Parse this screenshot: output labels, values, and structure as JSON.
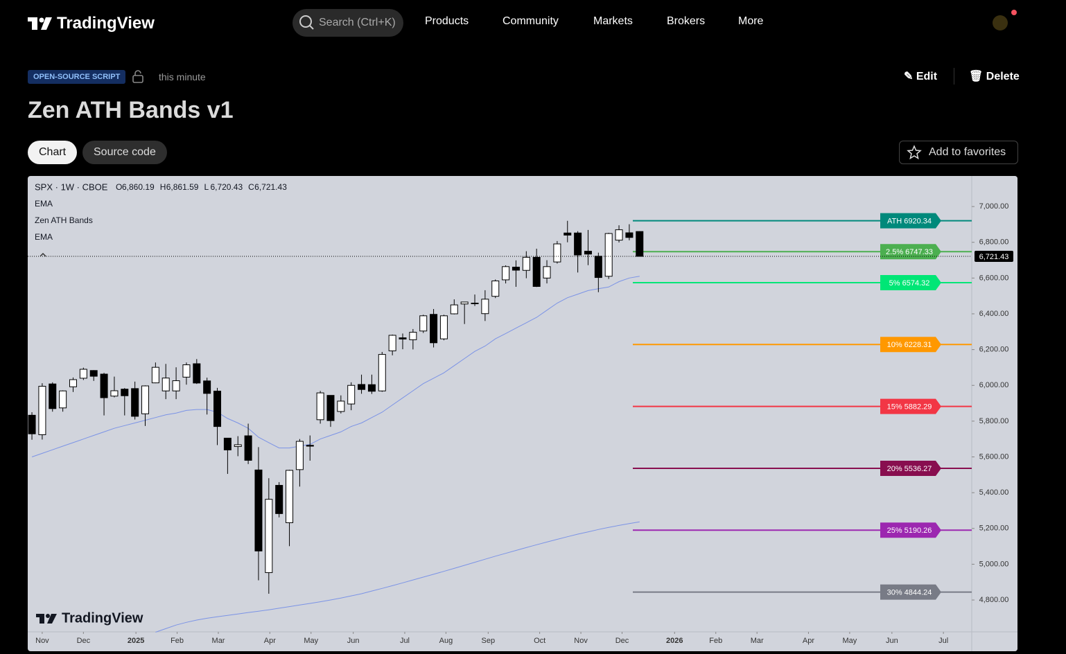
{
  "header": {
    "logo": "TradingView",
    "search": "Search (Ctrl+K)",
    "nav": [
      "Products",
      "Community",
      "Markets",
      "Brokers",
      "More"
    ]
  },
  "script": {
    "badge": "OPEN-SOURCE SCRIPT",
    "time": "this minute",
    "edit": "Edit",
    "delete": "Delete",
    "title": "Zen ATH Bands v1",
    "tabs": [
      "Chart",
      "Source code"
    ],
    "favorite": "Add to favorites"
  },
  "chart_data": {
    "type": "candlestick",
    "symbol": "SPX · 1W · CBOE",
    "ohlc_legend": [
      {
        "key": "O",
        "value": "6,860.19"
      },
      {
        "key": "H",
        "value": "6,861.59"
      },
      {
        "key": "L",
        "value": "6,720.43"
      },
      {
        "key": "C",
        "value": "6,721.43"
      }
    ],
    "watermark": "TradingView",
    "ylim": [
      4622,
      7163
    ],
    "yticks": [
      {
        "value": 4800,
        "label": "4,800.00"
      },
      {
        "value": 5000,
        "label": "5,000.00"
      },
      {
        "value": 5200,
        "label": "5,200.00"
      },
      {
        "value": 5400,
        "label": "5,400.00"
      },
      {
        "value": 5600,
        "label": "5,600.00"
      },
      {
        "value": 5800,
        "label": "5,800.00"
      },
      {
        "value": 6000,
        "label": "6,000.00"
      },
      {
        "value": 6200,
        "label": "6,200.00"
      },
      {
        "value": 6400,
        "label": "6,400.00"
      },
      {
        "value": 6600,
        "label": "6,600.00"
      },
      {
        "value": 6800,
        "label": "6,800.00"
      },
      {
        "value": 7000,
        "label": "7,000.00"
      }
    ],
    "xlim": [
      -0.34,
      91.25
    ],
    "xticks": [
      {
        "value": 1.0,
        "label": "Nov"
      },
      {
        "value": 5.0,
        "label": "Dec"
      },
      {
        "value": 10.1,
        "label": "2025"
      },
      {
        "value": 14.1,
        "label": "Feb"
      },
      {
        "value": 18.1,
        "label": "Mar"
      },
      {
        "value": 23.1,
        "label": "Apr"
      },
      {
        "value": 27.1,
        "label": "May"
      },
      {
        "value": 31.2,
        "label": "Jun"
      },
      {
        "value": 36.2,
        "label": "Jul"
      },
      {
        "value": 40.2,
        "label": "Aug"
      },
      {
        "value": 44.3,
        "label": "Sep"
      },
      {
        "value": 49.3,
        "label": "Oct"
      },
      {
        "value": 53.3,
        "label": "Nov"
      },
      {
        "value": 57.3,
        "label": "Dec"
      },
      {
        "value": 62.4,
        "label": "2026"
      },
      {
        "value": 66.4,
        "label": "Feb"
      },
      {
        "value": 70.4,
        "label": "Mar"
      },
      {
        "value": 75.4,
        "label": "Apr"
      },
      {
        "value": 79.4,
        "label": "May"
      },
      {
        "value": 83.5,
        "label": "Jun"
      },
      {
        "value": 88.5,
        "label": "Jul"
      }
    ],
    "ohlc": {
      "open": [
        5833,
        5724,
        6008,
        5874,
        5992,
        6040,
        6083,
        6063,
        5940,
        5979,
        5982,
        5841,
        6014,
        5969,
        5969,
        6046,
        6121,
        6025,
        5968,
        5705,
        5658,
        5718,
        5527,
        4953,
        5441,
        5232,
        5529,
        5665,
        5808,
        5944,
        5854,
        5896,
        6005,
        6004,
        5969,
        6193,
        6266,
        6255,
        6304,
        6397,
        6260,
        6400,
        6455,
        6457,
        6401,
        6498,
        6590,
        6661,
        6643,
        6716,
        6600,
        6690,
        6852,
        6852,
        6750,
        6722,
        6610,
        6812,
        6853,
        6860.19
      ],
      "high": [
        5850,
        6012,
        6017,
        5972,
        6044,
        6099,
        6085,
        6070,
        6049,
        5985,
        6021,
        6000,
        6128,
        6120,
        6101,
        6128,
        6147,
        6043,
        5986,
        5705,
        5716,
        5786,
        5655,
        5481,
        5459,
        5528,
        5700,
        5720,
        5969,
        5944,
        5944,
        6017,
        6060,
        6060,
        6187,
        6284,
        6290,
        6315,
        6395,
        6427,
        6395,
        6481,
        6467,
        6508,
        6532,
        6592,
        6671,
        6699,
        6750,
        6764,
        6700,
        6807,
        6920,
        6862,
        6869,
        6742,
        6853,
        6895,
        6901,
        6861.59
      ],
      "low": [
        5696,
        5697,
        5853,
        5853,
        5963,
        6030,
        6025,
        5832,
        5933,
        5832,
        5809,
        5773,
        6012,
        5923,
        5923,
        6004,
        6008,
        5837,
        5666,
        5505,
        5604,
        5560,
        4910,
        4835,
        5262,
        5101,
        5434,
        5579,
        5786,
        5768,
        5843,
        5861,
        5953,
        5952,
        5964,
        6168,
        6202,
        6201,
        6293,
        6212,
        6252,
        6397,
        6343,
        6444,
        6360,
        6488,
        6570,
        6551,
        6599,
        6550,
        6570,
        6681,
        6800,
        6631,
        6672,
        6521,
        6595,
        6799,
        6811,
        6720.43
      ],
      "close": [
        5729,
        5995,
        5870,
        5969,
        6032,
        6090,
        6051,
        5931,
        5970,
        5942,
        5827,
        5997,
        6101,
        6041,
        6026,
        6115,
        6013,
        5955,
        5770,
        5639,
        5668,
        5581,
        5074,
        5363,
        5283,
        5525,
        5687,
        5660,
        5958,
        5803,
        5912,
        6000,
        5977,
        5967,
        6173,
        6280,
        6259,
        6297,
        6389,
        6238,
        6389,
        6450,
        6466,
        6460,
        6482,
        6584,
        6664,
        6644,
        6716,
        6553,
        6664,
        6791,
        6840,
        6729,
        6734,
        6603,
        6849,
        6870,
        6827,
        6721.43
      ]
    },
    "lines": [
      {
        "name": "EMA",
        "color": "#7b93e6",
        "values": [
          5600,
          5620,
          5640,
          5660,
          5680,
          5700,
          5720,
          5740,
          5760,
          5775,
          5790,
          5805,
          5820,
          5835,
          5845,
          5860,
          5865,
          5865,
          5850,
          5815,
          5790,
          5760,
          5710,
          5680,
          5650,
          5650,
          5660,
          5670,
          5700,
          5720,
          5740,
          5770,
          5790,
          5820,
          5850,
          5890,
          5930,
          5970,
          6010,
          6040,
          6070,
          6110,
          6150,
          6190,
          6220,
          6260,
          6290,
          6320,
          6350,
          6380,
          6420,
          6460,
          6490,
          6510,
          6530,
          6540,
          6550,
          6580,
          6600,
          6610
        ]
      },
      {
        "name": "EMA",
        "color": "#7b93e6",
        "values": [
          null,
          null,
          null,
          null,
          null,
          null,
          null,
          null,
          null,
          null,
          null,
          null,
          4620,
          4640,
          4660,
          4675,
          4688,
          4698,
          4706,
          4714,
          4722,
          4730,
          4737,
          4745,
          4754,
          4763,
          4772,
          4781,
          4790,
          4800,
          4811,
          4823,
          4835,
          4850,
          4865,
          4880,
          4896,
          4912,
          4928,
          4944,
          4960,
          4977,
          4994,
          5011,
          5028,
          5045,
          5061,
          5077,
          5093,
          5109,
          5124,
          5139,
          5154,
          5168,
          5181,
          5194,
          5206,
          5217,
          5227,
          5237
        ]
      }
    ],
    "bands_name": "Zen ATH Bands",
    "bands": [
      {
        "value": 6920.34,
        "value_label": "ATH 6920.34",
        "color": "#00897b"
      },
      {
        "value": 6747.33,
        "value_label": "2.5% 6747.33",
        "color": "#4caf50"
      },
      {
        "value": 6574.32,
        "value_label": "5% 6574.32",
        "color": "#00e676"
      },
      {
        "value": 6228.31,
        "value_label": "10% 6228.31",
        "color": "#ff9800"
      },
      {
        "value": 5882.29,
        "value_label": "15% 5882.29",
        "color": "#f23645"
      },
      {
        "value": 5536.27,
        "value_label": "20% 5536.27",
        "color": "#880e4f"
      },
      {
        "value": 5190.26,
        "value_label": "25% 5190.26",
        "color": "#9c27b0"
      },
      {
        "value": 4844.24,
        "value_label": "30% 4844.24",
        "color": "#787b86"
      }
    ],
    "last_price": {
      "value": 6721.43,
      "label": "6,721.43"
    }
  }
}
